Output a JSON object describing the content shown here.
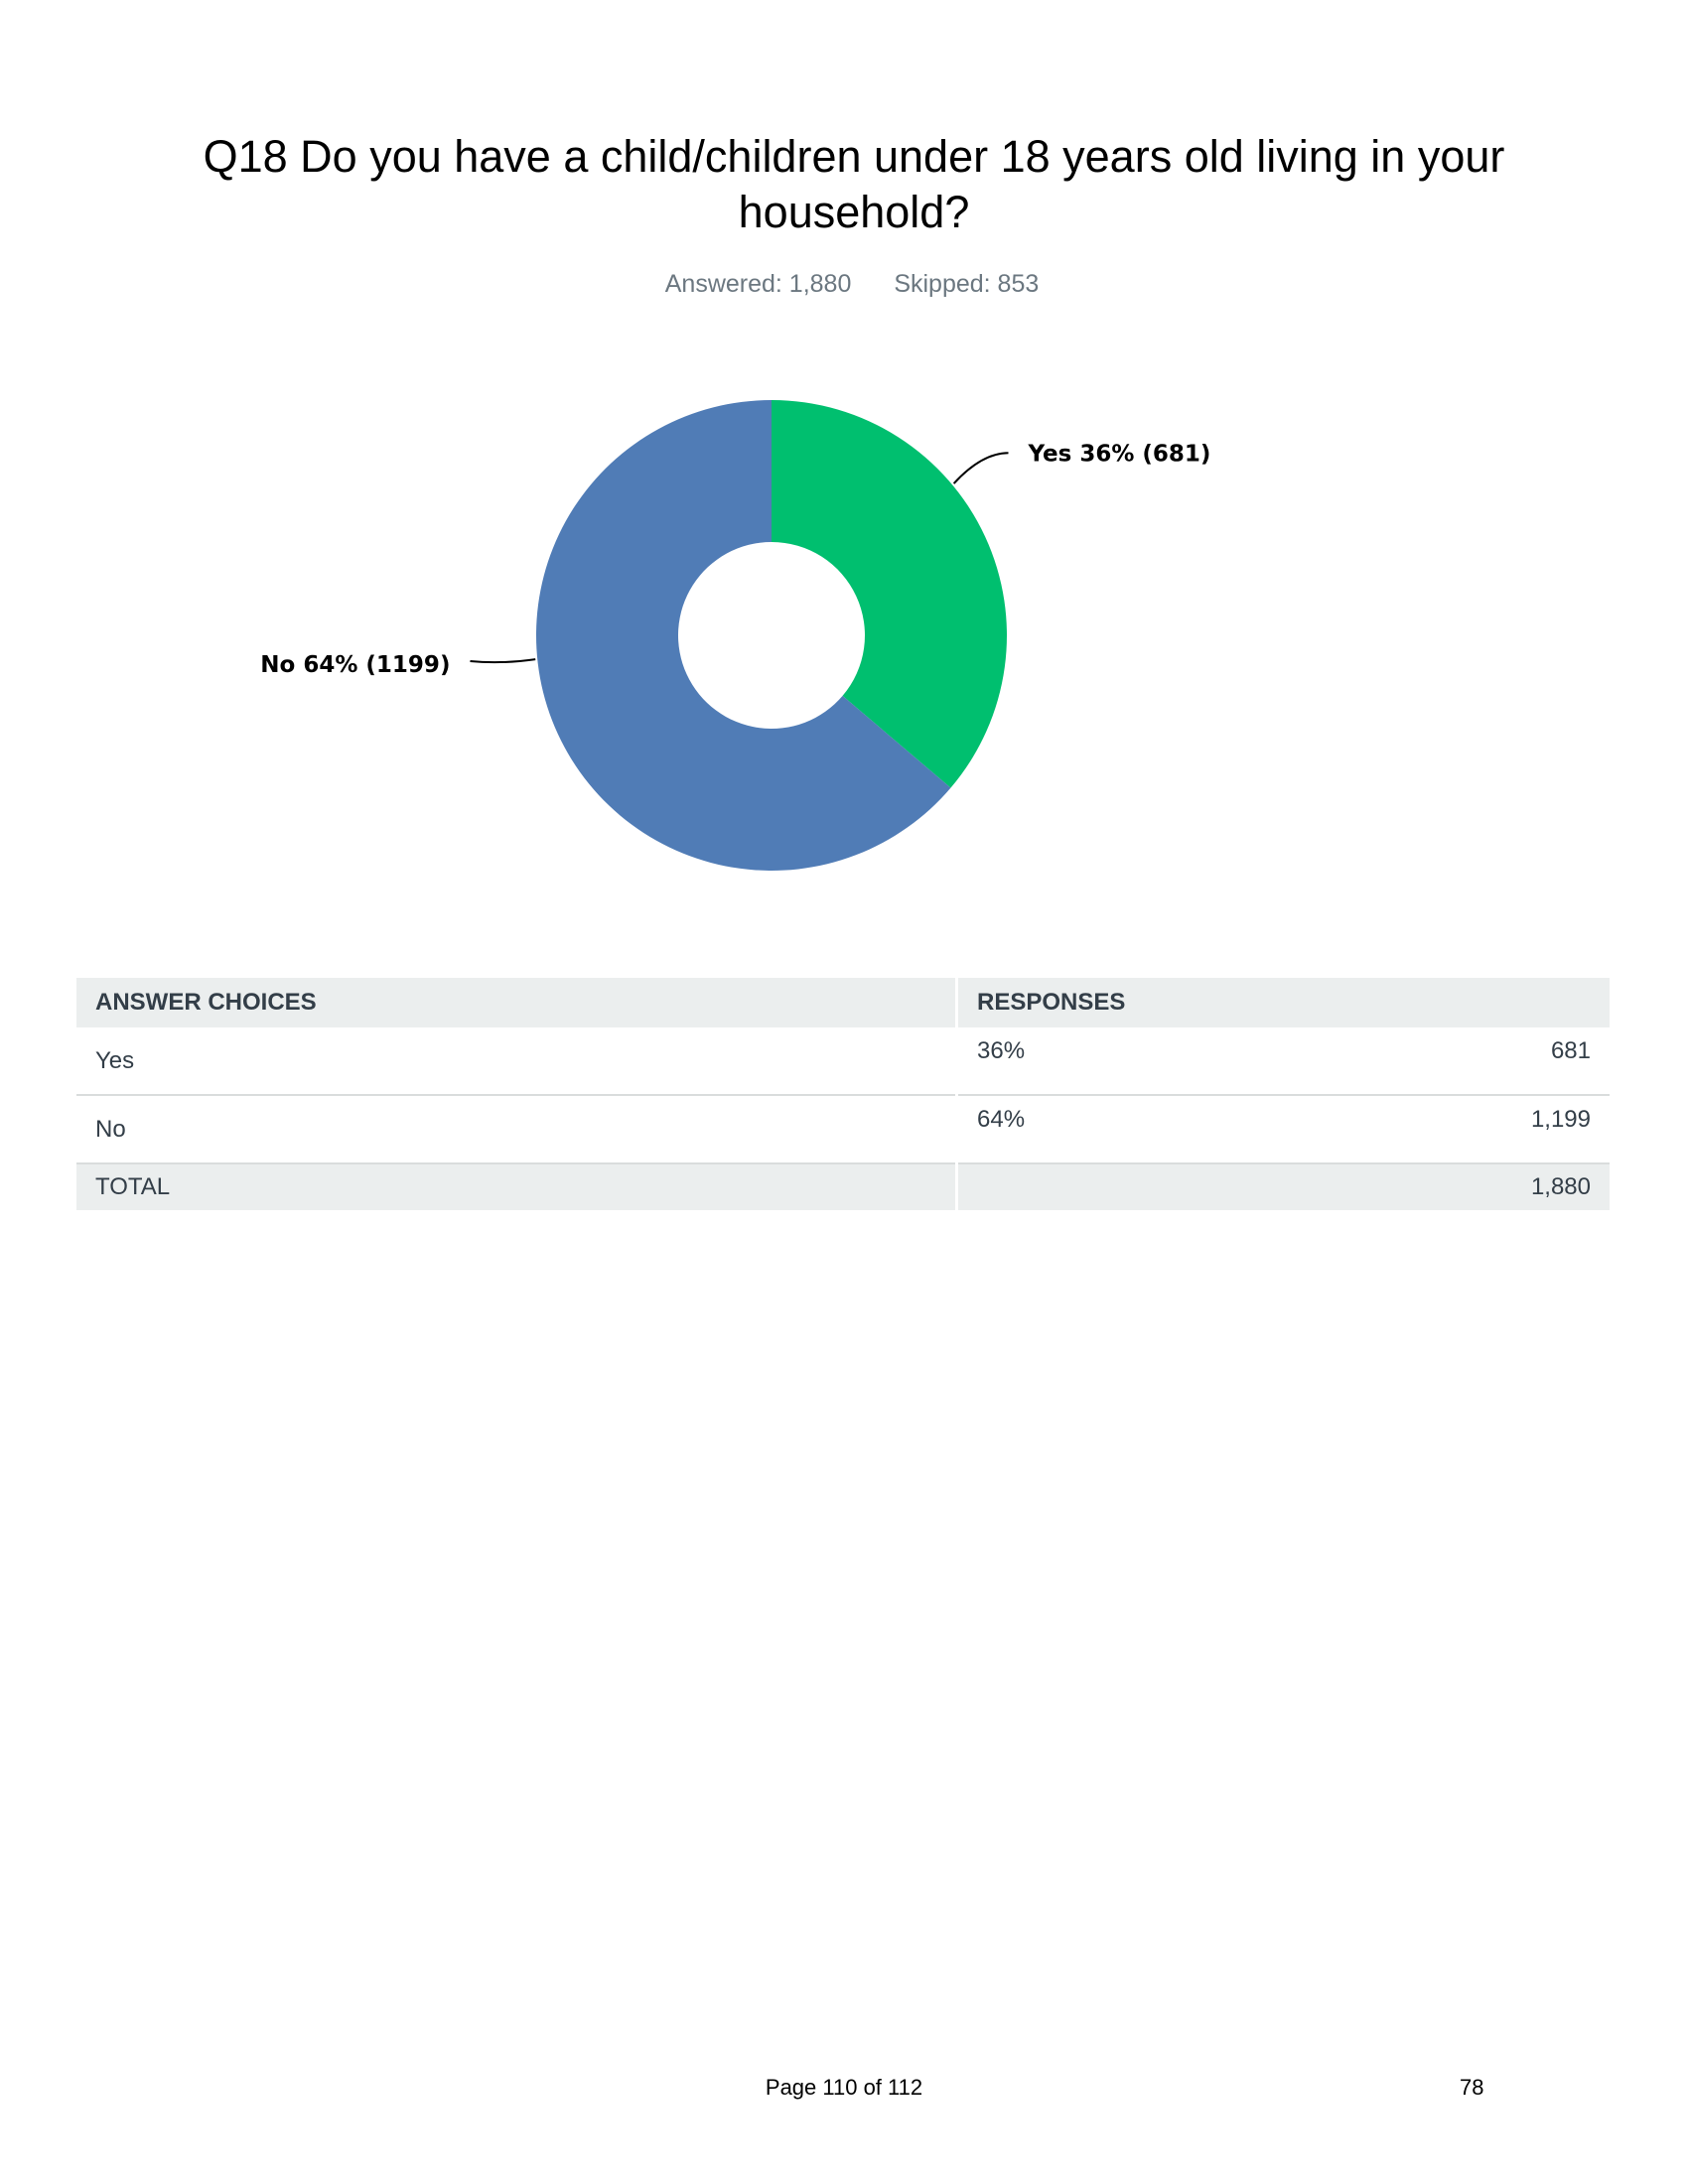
{
  "question": {
    "title": "Q18 Do you have a child/children under 18 years old living in your household?",
    "answered": "Answered: 1,880",
    "skipped": "Skipped: 853"
  },
  "chart_data": {
    "type": "pie",
    "donut": true,
    "categories": [
      "Yes",
      "No"
    ],
    "values": [
      681,
      1199
    ],
    "labels": [
      "Yes 36% (681)",
      "No 64% (1199)"
    ],
    "colors": [
      "#00bf6f",
      "#507cb6"
    ]
  },
  "table": {
    "headers": [
      "ANSWER CHOICES",
      "RESPONSES"
    ],
    "rows": [
      {
        "choice": "Yes",
        "percent": "36%",
        "count": "681"
      },
      {
        "choice": "No",
        "percent": "64%",
        "count": "1,199"
      }
    ],
    "total_label": "TOTAL",
    "total_count": "1,880"
  },
  "footer": {
    "page": "Page 110 of 112",
    "number": "78"
  }
}
